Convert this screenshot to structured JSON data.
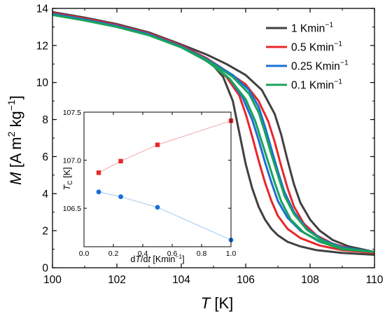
{
  "chart_data": [
    {
      "type": "line",
      "xlabel": {
        "var": "T",
        "unit": " [K]"
      },
      "ylabel": {
        "var": "M",
        "unit_parts": [
          " [A m",
          "2",
          " kg",
          "−1",
          "]"
        ]
      },
      "xlim": [
        100,
        110
      ],
      "ylim": [
        0,
        14
      ],
      "x_ticks": [
        100,
        102,
        104,
        106,
        108,
        110
      ],
      "y_ticks": [
        0,
        2,
        4,
        6,
        8,
        10,
        12,
        14
      ],
      "legend_position": "top-right",
      "colors": {
        "1": "#404040",
        "0.5": "#e8272a",
        "0.25": "#1a6fd6",
        "0.1": "#1aa35b"
      },
      "series": [
        {
          "name": "1 Kmin",
          "sup": "−1",
          "color_key": "1",
          "branches": [
            {
              "x": [
                100,
                101,
                102,
                103,
                104,
                104.5,
                105,
                105.3,
                105.6,
                105.8,
                106.0,
                106.2,
                106.4,
                106.6,
                106.8,
                107.0,
                107.3,
                107.7,
                108.2,
                109,
                110
              ],
              "y": [
                13.8,
                13.5,
                13.15,
                12.7,
                12.0,
                11.5,
                10.9,
                10.3,
                9.0,
                7.3,
                5.6,
                4.3,
                3.3,
                2.6,
                2.1,
                1.75,
                1.4,
                1.15,
                0.95,
                0.8,
                0.7
              ]
            },
            {
              "x": [
                100,
                101,
                102,
                103,
                104,
                104.8,
                105.4,
                106.0,
                106.5,
                106.9,
                107.1,
                107.3,
                107.5,
                107.7,
                108.0,
                108.3,
                108.7,
                109.2,
                110
              ],
              "y": [
                13.8,
                13.5,
                13.15,
                12.7,
                12.05,
                11.5,
                11.0,
                10.4,
                9.6,
                8.3,
                7.2,
                5.8,
                4.5,
                3.5,
                2.6,
                2.0,
                1.5,
                1.15,
                0.85
              ]
            }
          ]
        },
        {
          "name": "0.5 Kmin",
          "sup": "−1",
          "color_key": "0.5",
          "branches": [
            {
              "x": [
                100,
                101,
                102,
                103,
                104,
                104.8,
                105.4,
                105.8,
                106.0,
                106.2,
                106.4,
                106.6,
                106.8,
                107.0,
                107.3,
                107.7,
                108.3,
                109,
                110
              ],
              "y": [
                13.75,
                13.45,
                13.1,
                12.65,
                12.0,
                11.2,
                10.3,
                9.3,
                8.3,
                7.1,
                5.8,
                4.6,
                3.6,
                2.8,
                2.1,
                1.6,
                1.2,
                0.95,
                0.8
              ]
            },
            {
              "x": [
                100,
                101,
                102,
                103,
                104,
                104.8,
                105.5,
                106.0,
                106.4,
                106.7,
                106.9,
                107.1,
                107.3,
                107.5,
                107.8,
                108.2,
                108.7,
                109.3,
                110
              ],
              "y": [
                13.75,
                13.45,
                13.1,
                12.65,
                12.0,
                11.3,
                10.5,
                9.9,
                9.0,
                7.9,
                6.8,
                5.5,
                4.3,
                3.3,
                2.4,
                1.75,
                1.3,
                1.0,
                0.85
              ]
            }
          ]
        },
        {
          "name": "0.25 Kmin",
          "sup": "−1",
          "color_key": "0.25",
          "branches": [
            {
              "x": [
                100,
                101,
                102,
                103,
                104,
                104.8,
                105.5,
                105.9,
                106.2,
                106.4,
                106.6,
                106.8,
                107.0,
                107.3,
                107.7,
                108.3,
                109,
                110
              ],
              "y": [
                13.7,
                13.4,
                13.05,
                12.6,
                11.95,
                11.2,
                10.2,
                9.2,
                8.0,
                6.9,
                5.7,
                4.6,
                3.6,
                2.7,
                2.0,
                1.4,
                1.05,
                0.85
              ]
            },
            {
              "x": [
                100,
                101,
                102,
                103,
                104,
                104.8,
                105.6,
                106.1,
                106.4,
                106.6,
                106.8,
                107.0,
                107.2,
                107.5,
                107.9,
                108.4,
                109,
                110
              ],
              "y": [
                13.7,
                13.4,
                13.05,
                12.6,
                11.95,
                11.25,
                10.4,
                9.6,
                8.7,
                7.6,
                6.4,
                5.2,
                4.1,
                3.0,
                2.1,
                1.5,
                1.1,
                0.85
              ]
            }
          ]
        },
        {
          "name": "0.1 Kmin",
          "sup": "−1",
          "color_key": "0.1",
          "branches": [
            {
              "x": [
                100,
                101,
                102,
                103,
                104,
                104.8,
                105.5,
                106.0,
                106.3,
                106.5,
                106.7,
                106.9,
                107.1,
                107.4,
                107.8,
                108.4,
                109,
                110
              ],
              "y": [
                13.65,
                13.35,
                13.0,
                12.55,
                11.9,
                11.15,
                10.2,
                9.1,
                7.9,
                6.8,
                5.7,
                4.6,
                3.6,
                2.6,
                1.9,
                1.35,
                1.0,
                0.85
              ]
            },
            {
              "x": [
                100,
                101,
                102,
                103,
                104,
                104.8,
                105.6,
                106.1,
                106.4,
                106.6,
                106.8,
                107.0,
                107.2,
                107.5,
                107.9,
                108.4,
                109,
                110
              ],
              "y": [
                13.65,
                13.35,
                13.0,
                12.55,
                11.9,
                11.2,
                10.3,
                9.4,
                8.4,
                7.3,
                6.1,
                5.0,
                3.9,
                2.9,
                2.05,
                1.45,
                1.05,
                0.85
              ]
            }
          ]
        }
      ]
    },
    {
      "type": "scatter",
      "xlabel": {
        "parts": [
          "d",
          "T",
          "/d",
          "t",
          " [Kmin",
          "−1",
          "]"
        ]
      },
      "ylabel": {
        "var": "T",
        "sub": "C",
        "unit": " [K]"
      },
      "xlim": [
        0,
        1.0
      ],
      "ylim": [
        106.1,
        107.5
      ],
      "x_ticks": [
        "0.0",
        "0.2",
        "0.4",
        "0.6",
        "0.8",
        "1.0"
      ],
      "y_ticks": [
        "106.5",
        "107.0",
        "107.5"
      ],
      "series": [
        {
          "marker": "square",
          "color": "#e8272a",
          "line_color": "#f4a3a3",
          "x": [
            0.1,
            0.25,
            0.5,
            1.0
          ],
          "y": [
            106.87,
            106.99,
            107.16,
            107.41
          ]
        },
        {
          "marker": "circle",
          "color": "#1a6fd6",
          "line_color": "#9ec7f0",
          "x": [
            0.1,
            0.25,
            0.5,
            1.0
          ],
          "y": [
            106.67,
            106.62,
            106.51,
            106.17
          ]
        }
      ]
    }
  ]
}
